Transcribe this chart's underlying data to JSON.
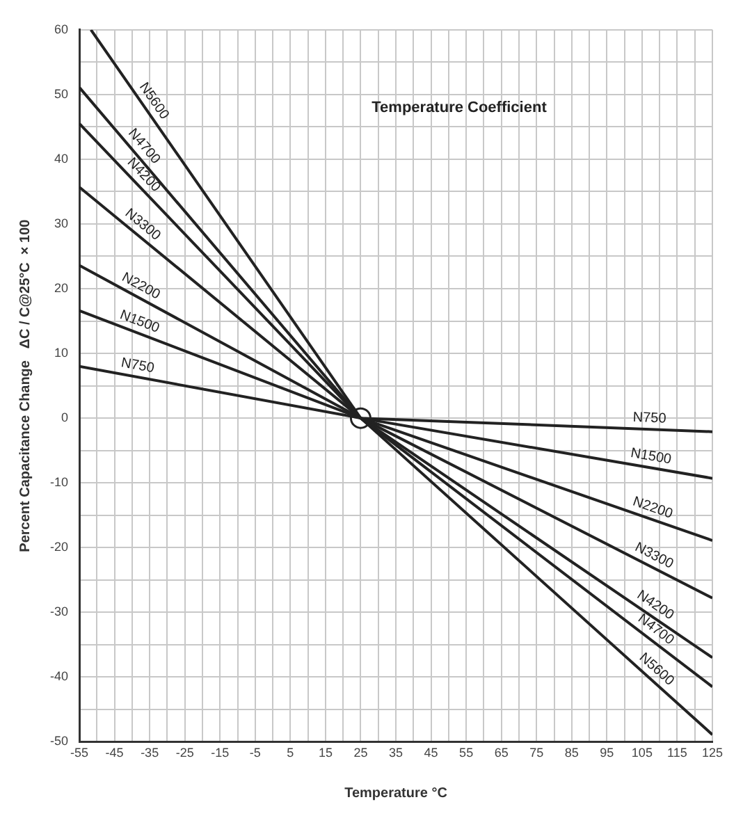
{
  "chart_data": {
    "type": "line",
    "title": "Temperature Coefficient",
    "xlabel": "Temperature °C",
    "ylabel": "Percent Capacitance Change   ΔC / C@25°C  × 100",
    "xlim": [
      -55,
      125
    ],
    "ylim": [
      -50,
      60
    ],
    "xticks": [
      -55,
      {
        "value": -50,
        "label": null
      },
      -45,
      {
        "value": -40,
        "label": null
      },
      -35,
      {
        "value": -30,
        "label": null
      },
      -25,
      {
        "value": -20,
        "label": null
      },
      -15,
      {
        "value": -10,
        "label": null
      },
      -5,
      {
        "value": 0,
        "label": null
      },
      5,
      {
        "value": 10,
        "label": null
      },
      15,
      {
        "value": 20,
        "label": null
      },
      25,
      {
        "value": 30,
        "label": null
      },
      35,
      {
        "value": 40,
        "label": null
      },
      45,
      {
        "value": 50,
        "label": null
      },
      55,
      {
        "value": 60,
        "label": null
      },
      65,
      {
        "value": 70,
        "label": null
      },
      75,
      {
        "value": 80,
        "label": null
      },
      85,
      {
        "value": 90,
        "label": null
      },
      95,
      {
        "value": 100,
        "label": null
      },
      105,
      {
        "value": 110,
        "label": null
      },
      115,
      {
        "value": 120,
        "label": null
      },
      125
    ],
    "yticks": [
      -50,
      {
        "value": -45,
        "label": null
      },
      -40,
      {
        "value": -35,
        "label": null
      },
      -30,
      {
        "value": -25,
        "label": null
      },
      -20,
      {
        "value": -15,
        "label": null
      },
      -10,
      {
        "value": -5,
        "label": null
      },
      0,
      {
        "value": 5,
        "label": null
      },
      10,
      {
        "value": 15,
        "label": null
      },
      20,
      {
        "value": 25,
        "label": null
      },
      30,
      {
        "value": 35,
        "label": null
      },
      40,
      {
        "value": 45,
        "label": null
      },
      50,
      {
        "value": 55,
        "label": null
      },
      60
    ],
    "grid": true,
    "legend": false,
    "marker": "none",
    "line_style": "solid",
    "series": [
      {
        "name": "N750",
        "color": "#222222",
        "x": [
          -55,
          25,
          125
        ],
        "values": [
          8,
          0,
          -2.1
        ]
      },
      {
        "name": "N1500",
        "color": "#222222",
        "x": [
          -55,
          25,
          125
        ],
        "values": [
          16.6,
          0,
          -9.3
        ]
      },
      {
        "name": "N2200",
        "color": "#222222",
        "x": [
          -55,
          25,
          125
        ],
        "values": [
          23.6,
          0,
          -18.9
        ]
      },
      {
        "name": "N3300",
        "color": "#222222",
        "x": [
          -55,
          25,
          125
        ],
        "values": [
          35.7,
          0,
          -27.8
        ]
      },
      {
        "name": "N4200",
        "color": "#222222",
        "x": [
          -55,
          25,
          125
        ],
        "values": [
          45.5,
          0,
          -37
        ]
      },
      {
        "name": "N4700",
        "color": "#222222",
        "x": [
          -55,
          25,
          125
        ],
        "values": [
          51.1,
          0,
          -41.5
        ]
      },
      {
        "name": "N5600",
        "color": "#222222",
        "x": [
          -51.7,
          25,
          125
        ],
        "values": [
          60,
          0,
          -48.9
        ]
      },
      {
        "type": "scatter",
        "color": "#ffffff",
        "x": [
          25
        ],
        "values": [
          0
        ],
        "marker": "circle"
      }
    ]
  }
}
